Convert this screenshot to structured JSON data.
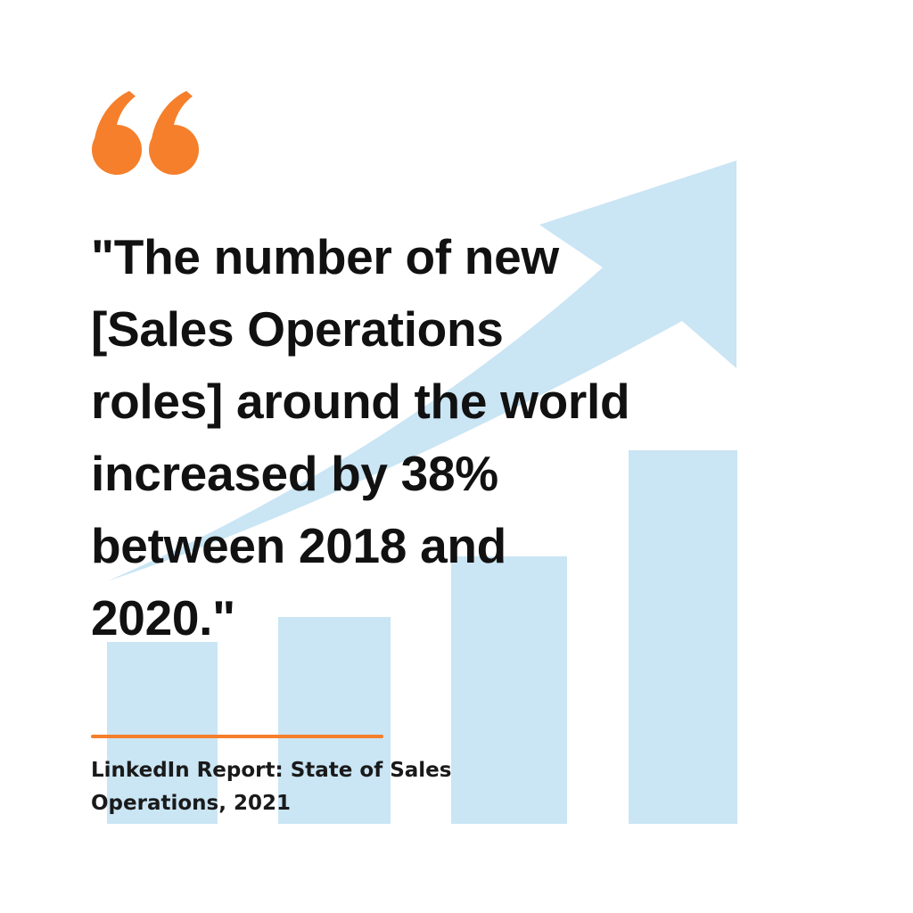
{
  "quote": {
    "text": "\"The number of new\n[Sales Operations\nroles] around the world\nincreased by 38%\nbetween 2018 and\n2020.\""
  },
  "source": {
    "text": "LinkedIn Report: State of Sales\nOperations, 2021"
  },
  "decoration": {
    "quote_mark_icon": "orange-double-quote-icon",
    "background_graphic": "rising-bar-chart-with-arrow"
  },
  "colors": {
    "accent": "#F57F2B",
    "graphic": "#CAE5F4",
    "text": "#111111",
    "background": "#FFFFFF"
  }
}
